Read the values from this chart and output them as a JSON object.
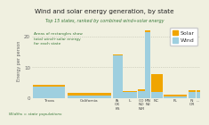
{
  "title": "Wind and solar energy generation, by state",
  "subtitle": "Top 15 states, ranked by combined wind+solar energy",
  "ylabel": "Energy per person",
  "annotation": "Areas of rectangles show\ntotal wind+solar energy\nfor each state",
  "footnote": "Widths = state populations",
  "ylim": [
    0,
    24
  ],
  "yticks": [
    0,
    10,
    20
  ],
  "bg_color": "#f0f0e0",
  "plot_bg": "#f0f0e0",
  "wind_color": "#9ecfdf",
  "solar_color": "#f0a500",
  "legend_solar": "Solar",
  "legend_wind": "Wind",
  "states": [
    {
      "label": "Texas",
      "pop": 29.5,
      "wind": 3.8,
      "solar": 0.55
    },
    {
      "label": "California",
      "pop": 39.5,
      "wind": 0.9,
      "solar": 0.7
    },
    {
      "label": "IA\nOK\nKS",
      "pop": 9.0,
      "wind": 13.8,
      "solar": 0.45
    },
    {
      "label": "IL",
      "pop": 12.8,
      "wind": 2.0,
      "solar": 0.35
    },
    {
      "label": "CO\nND\nNM",
      "pop": 6.5,
      "wind": 2.3,
      "solar": 0.55
    },
    {
      "label": "MN\nNE",
      "pop": 4.5,
      "wind": 21.5,
      "solar": 0.5
    },
    {
      "label": "NC",
      "pop": 10.5,
      "wind": 1.8,
      "solar": 6.0
    },
    {
      "label": "FL",
      "pop": 21.5,
      "wind": 0.4,
      "solar": 0.55
    },
    {
      "label": "IN\nOR",
      "pop": 7.0,
      "wind": 2.0,
      "solar": 0.5
    },
    {
      "label": "...",
      "pop": 3.5,
      "wind": 2.0,
      "solar": 0.5
    }
  ]
}
